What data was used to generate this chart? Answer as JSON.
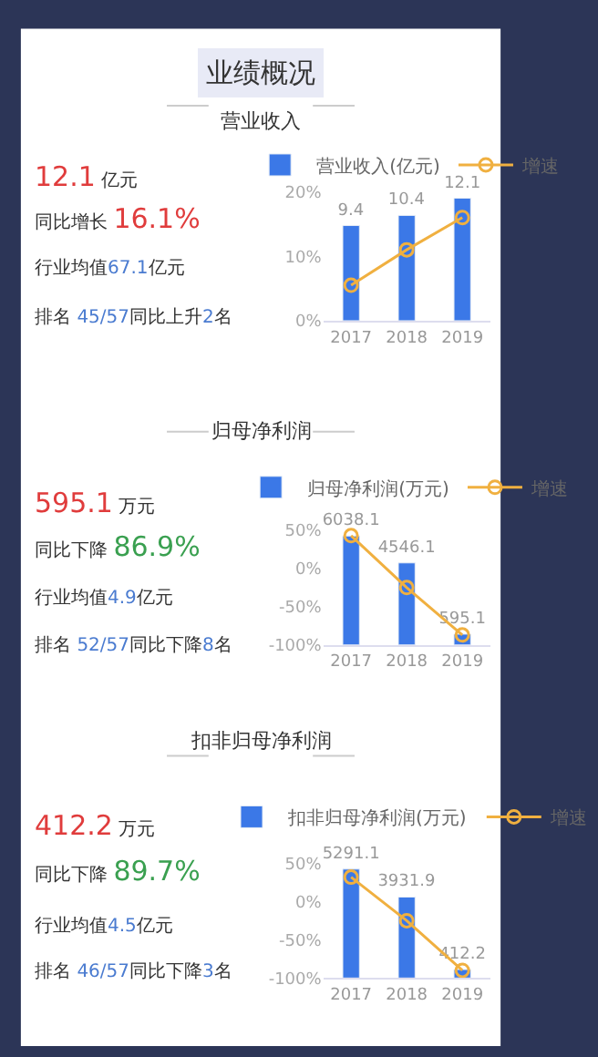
{
  "chart_data": [
    {
      "type": "bar",
      "title": "业绩概况",
      "subtitle": "营业收入",
      "annotations": [
        "12.1 亿元",
        "同比增长 16.1%",
        "行业均值67.1亿元",
        "排名 45/57同比上升2名"
      ],
      "categories": [
        "2017",
        "2018",
        "2019"
      ],
      "ylim": [
        0,
        20
      ],
      "yticks": [
        {
          "value": 0,
          "label": "0%"
        },
        {
          "value": 10,
          "label": "10%"
        },
        {
          "value": 20,
          "label": "20%"
        }
      ],
      "legend": "top",
      "grid": false,
      "marker": "circle",
      "series": [
        {
          "name": "营业收入(亿元)",
          "color": "#3b78e7",
          "values": [
            9.4,
            10.4,
            12.1
          ],
          "axis": "y2",
          "value_labels": [
            "9.4",
            "10.4",
            "12.1"
          ]
        },
        {
          "name": "增速",
          "type": "line",
          "color": "#f0b040",
          "values": [
            5.5,
            11,
            16
          ]
        }
      ]
    },
    {
      "type": "bar",
      "subtitle": "归母净利润",
      "annotations": [
        "595.1 万元",
        "同比下降 86.9%",
        "行业均值4.9亿元",
        "排名 52/57同比下降8名"
      ],
      "categories": [
        "2017",
        "2018",
        "2019"
      ],
      "ylim": [
        -100,
        50
      ],
      "yticks": [
        {
          "value": -100,
          "label": "-100%"
        },
        {
          "value": -50,
          "label": "-50%"
        },
        {
          "value": 0,
          "label": "0%"
        },
        {
          "value": 50,
          "label": "50%"
        }
      ],
      "legend": "top",
      "grid": false,
      "marker": "circle",
      "series": [
        {
          "name": "归母净利润(万元)",
          "color": "#3b78e7",
          "values": [
            6038.1,
            4546.1,
            595.1
          ],
          "axis": "y2",
          "value_labels": [
            "6038.1",
            "4546.1",
            "595.1"
          ]
        },
        {
          "name": "增速",
          "type": "line",
          "color": "#f0b040",
          "values": [
            43,
            -25,
            -87
          ]
        }
      ]
    },
    {
      "type": "bar",
      "subtitle": "扣非归母净利润",
      "annotations": [
        "412.2 万元",
        "同比下降 89.7%",
        "行业均值4.5亿元",
        "排名 46/57同比下降3名"
      ],
      "categories": [
        "2017",
        "2018",
        "2019"
      ],
      "ylim": [
        -100,
        50
      ],
      "yticks": [
        {
          "value": -100,
          "label": "-100%"
        },
        {
          "value": -50,
          "label": "-50%"
        },
        {
          "value": 0,
          "label": "0%"
        },
        {
          "value": 50,
          "label": "50%"
        }
      ],
      "legend": "top",
      "grid": false,
      "marker": "circle",
      "series": [
        {
          "name": "扣非归母净利润(万元)",
          "color": "#3b78e7",
          "values": [
            5291.1,
            3931.9,
            412.2
          ],
          "axis": "y2",
          "value_labels": [
            "5291.1",
            "3931.9",
            "412.2"
          ]
        },
        {
          "name": "增速",
          "type": "line",
          "color": "#f0b040",
          "values": [
            32,
            -25,
            -90
          ]
        }
      ]
    }
  ]
}
